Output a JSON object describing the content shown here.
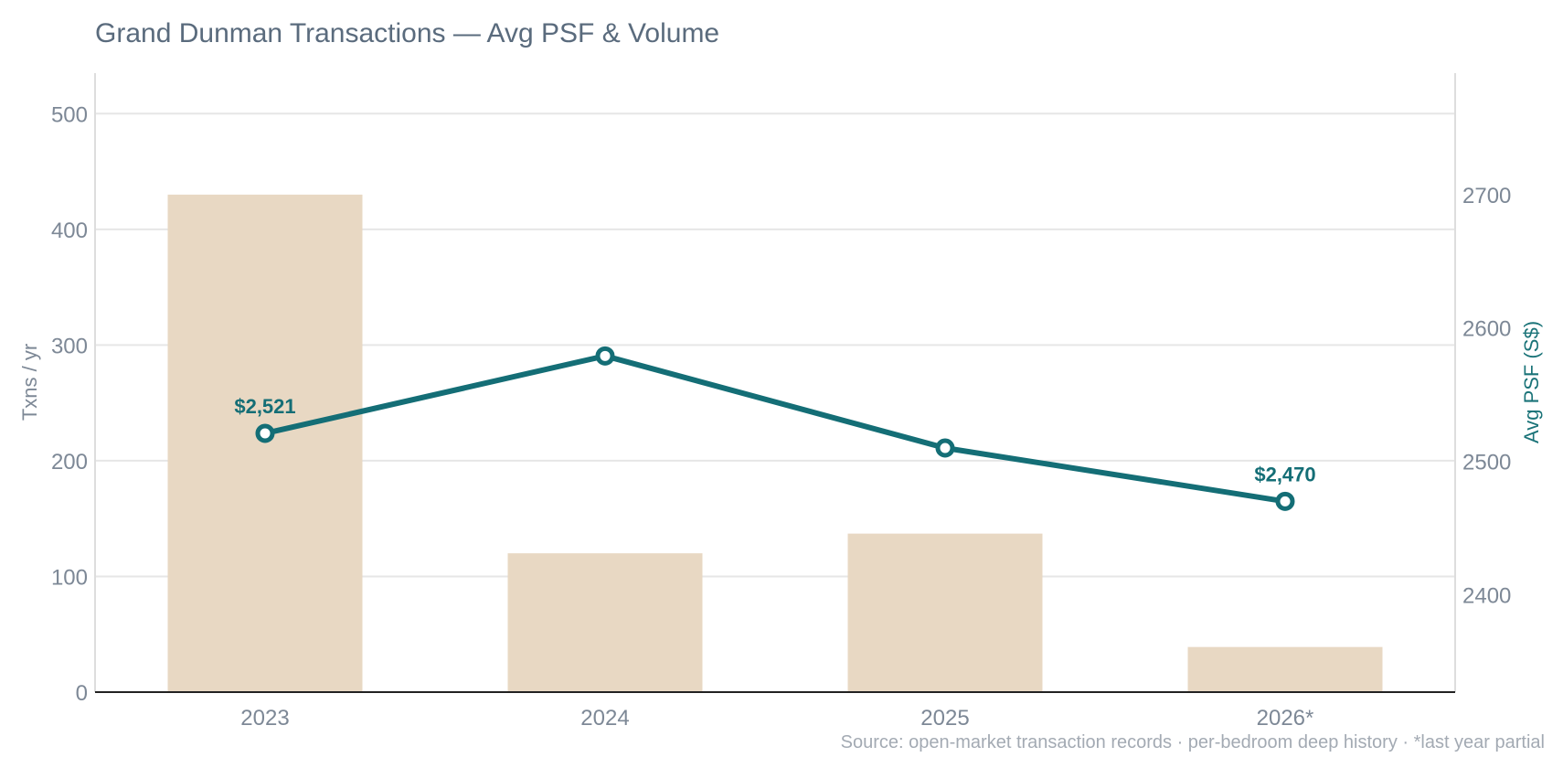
{
  "title": "Grand Dunman Transactions — Avg PSF & Volume",
  "source_note": "Source: open-market transaction records · per-bedroom deep history · *last year partial",
  "colors": {
    "bar": "#e8d8c3",
    "line": "#146e76",
    "grid": "#e6e6e6",
    "axis": "#222222",
    "right_axis_line": "#dddddd"
  },
  "chart_data": {
    "type": "bar+line",
    "categories": [
      "2023",
      "2024",
      "2025",
      "2026*"
    ],
    "bars": {
      "axis": "left",
      "values": [
        430,
        120,
        137,
        39
      ]
    },
    "line": {
      "axis": "right",
      "values": [
        2521,
        2579,
        2510,
        2470
      ],
      "point_labels": [
        "$2,521",
        "",
        "",
        "$2,470"
      ]
    },
    "left_axis": {
      "label": "Txns / yr",
      "range": [
        0,
        535
      ],
      "ticks": [
        0,
        100,
        200,
        300,
        400,
        500
      ]
    },
    "right_axis": {
      "label": "Avg PSF (S$)",
      "range": [
        2327,
        2791
      ],
      "ticks": [
        2400,
        2500,
        2600,
        2700
      ]
    },
    "grid": true,
    "legend": "none"
  }
}
